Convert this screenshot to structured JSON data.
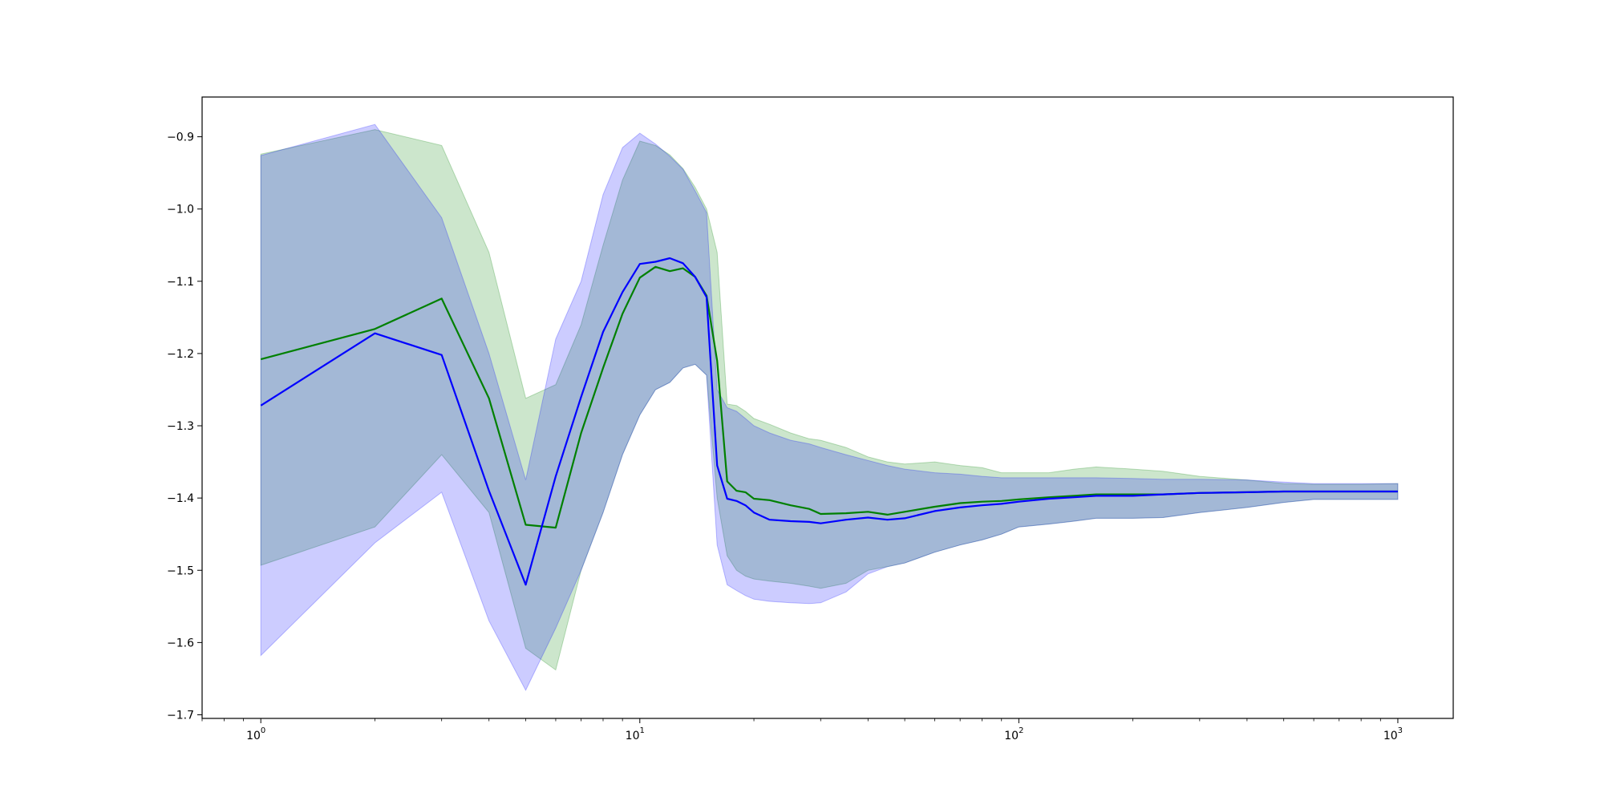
{
  "chart_data": {
    "type": "line",
    "title": "",
    "xlabel": "",
    "ylabel": "",
    "x_scale": "log",
    "xlim": [
      0.7,
      1400
    ],
    "ylim": [
      -1.705,
      -0.845
    ],
    "grid": false,
    "legend": "none",
    "x_ticks": [
      {
        "value": 1,
        "base": "10",
        "exp": "0"
      },
      {
        "value": 10,
        "base": "10",
        "exp": "1"
      },
      {
        "value": 100,
        "base": "10",
        "exp": "2"
      },
      {
        "value": 1000,
        "base": "10",
        "exp": "3"
      }
    ],
    "y_ticks": [
      {
        "value": -0.9,
        "label": "−0.9"
      },
      {
        "value": -1.0,
        "label": "−1.0"
      },
      {
        "value": -1.1,
        "label": "−1.1"
      },
      {
        "value": -1.2,
        "label": "−1.2"
      },
      {
        "value": -1.3,
        "label": "−1.3"
      },
      {
        "value": -1.4,
        "label": "−1.4"
      },
      {
        "value": -1.5,
        "label": "−1.5"
      },
      {
        "value": -1.6,
        "label": "−1.6"
      },
      {
        "value": -1.7,
        "label": "−1.7"
      }
    ],
    "series": [
      {
        "color": "#008000",
        "band_color": "#008000",
        "band_opacity": 0.2,
        "x": [
          1,
          2,
          3,
          4,
          5,
          6,
          7,
          8,
          9,
          10,
          11,
          12,
          13,
          14,
          15,
          16,
          17,
          18,
          19,
          20,
          22,
          25,
          28,
          30,
          35,
          40,
          45,
          50,
          60,
          70,
          80,
          90,
          100,
          120,
          140,
          160,
          200,
          240,
          300,
          400,
          500,
          600,
          700,
          800,
          1000
        ],
        "y": [
          -1.208,
          -1.166,
          -1.124,
          -1.262,
          -1.437,
          -1.441,
          -1.31,
          -1.22,
          -1.145,
          -1.095,
          -1.08,
          -1.086,
          -1.082,
          -1.094,
          -1.12,
          -1.21,
          -1.377,
          -1.39,
          -1.392,
          -1.401,
          -1.403,
          -1.41,
          -1.415,
          -1.422,
          -1.421,
          -1.419,
          -1.423,
          -1.419,
          -1.412,
          -1.407,
          -1.405,
          -1.404,
          -1.402,
          -1.399,
          -1.397,
          -1.395,
          -1.395,
          -1.395,
          -1.393,
          -1.392,
          -1.391,
          -1.391,
          -1.391,
          -1.391,
          -1.391
        ],
        "upper": [
          -0.924,
          -0.89,
          -0.912,
          -1.06,
          -1.262,
          -1.243,
          -1.16,
          -1.05,
          -0.96,
          -0.906,
          -0.912,
          -0.925,
          -0.944,
          -0.97,
          -1.0,
          -1.06,
          -1.27,
          -1.272,
          -1.28,
          -1.29,
          -1.298,
          -1.31,
          -1.318,
          -1.32,
          -1.33,
          -1.343,
          -1.35,
          -1.353,
          -1.35,
          -1.355,
          -1.358,
          -1.365,
          -1.365,
          -1.365,
          -1.36,
          -1.357,
          -1.36,
          -1.363,
          -1.37,
          -1.375,
          -1.38,
          -1.381,
          -1.381,
          -1.381,
          -1.38
        ],
        "lower": [
          -1.493,
          -1.44,
          -1.34,
          -1.42,
          -1.608,
          -1.638,
          -1.5,
          -1.42,
          -1.34,
          -1.285,
          -1.25,
          -1.24,
          -1.22,
          -1.215,
          -1.23,
          -1.4,
          -1.48,
          -1.5,
          -1.508,
          -1.512,
          -1.515,
          -1.518,
          -1.522,
          -1.525,
          -1.518,
          -1.5,
          -1.495,
          -1.49,
          -1.475,
          -1.465,
          -1.458,
          -1.45,
          -1.44,
          -1.436,
          -1.432,
          -1.428,
          -1.428,
          -1.427,
          -1.42,
          -1.413,
          -1.406,
          -1.402,
          -1.402,
          -1.402,
          -1.402
        ]
      },
      {
        "color": "#0000ff",
        "band_color": "#0000ff",
        "band_opacity": 0.2,
        "x": [
          1,
          2,
          3,
          4,
          5,
          6,
          7,
          8,
          9,
          10,
          11,
          12,
          13,
          14,
          15,
          16,
          17,
          18,
          19,
          20,
          22,
          25,
          28,
          30,
          35,
          40,
          45,
          50,
          60,
          70,
          80,
          90,
          100,
          120,
          140,
          160,
          200,
          240,
          300,
          400,
          500,
          600,
          700,
          800,
          1000
        ],
        "y": [
          -1.272,
          -1.172,
          -1.202,
          -1.39,
          -1.52,
          -1.37,
          -1.26,
          -1.17,
          -1.115,
          -1.076,
          -1.073,
          -1.068,
          -1.075,
          -1.094,
          -1.122,
          -1.355,
          -1.401,
          -1.404,
          -1.41,
          -1.42,
          -1.43,
          -1.432,
          -1.433,
          -1.435,
          -1.43,
          -1.427,
          -1.43,
          -1.428,
          -1.418,
          -1.413,
          -1.41,
          -1.408,
          -1.405,
          -1.401,
          -1.399,
          -1.397,
          -1.397,
          -1.395,
          -1.393,
          -1.392,
          -1.391,
          -1.391,
          -1.391,
          -1.391,
          -1.391
        ],
        "upper": [
          -0.926,
          -0.883,
          -1.012,
          -1.2,
          -1.375,
          -1.18,
          -1.1,
          -0.98,
          -0.915,
          -0.895,
          -0.91,
          -0.927,
          -0.945,
          -0.975,
          -1.005,
          -1.25,
          -1.275,
          -1.28,
          -1.29,
          -1.3,
          -1.31,
          -1.32,
          -1.325,
          -1.33,
          -1.34,
          -1.348,
          -1.355,
          -1.36,
          -1.365,
          -1.367,
          -1.37,
          -1.372,
          -1.372,
          -1.372,
          -1.372,
          -1.372,
          -1.373,
          -1.374,
          -1.374,
          -1.375,
          -1.378,
          -1.38,
          -1.38,
          -1.38,
          -1.38
        ],
        "lower": [
          -1.618,
          -1.462,
          -1.392,
          -1.57,
          -1.666,
          -1.58,
          -1.5,
          -1.42,
          -1.34,
          -1.285,
          -1.25,
          -1.24,
          -1.22,
          -1.215,
          -1.23,
          -1.465,
          -1.52,
          -1.528,
          -1.535,
          -1.54,
          -1.543,
          -1.545,
          -1.546,
          -1.545,
          -1.53,
          -1.505,
          -1.495,
          -1.49,
          -1.475,
          -1.465,
          -1.458,
          -1.45,
          -1.44,
          -1.436,
          -1.432,
          -1.428,
          -1.428,
          -1.427,
          -1.42,
          -1.413,
          -1.406,
          -1.402,
          -1.402,
          -1.402,
          -1.402
        ]
      }
    ]
  }
}
